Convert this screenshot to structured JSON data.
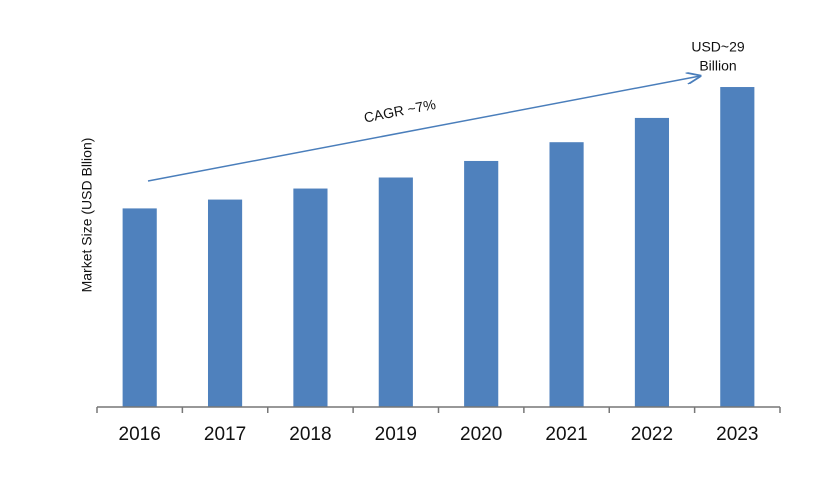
{
  "chart_data": {
    "type": "bar",
    "y_axis_label": "Market Size (USD Bllion)",
    "categories": [
      "2016",
      "2017",
      "2018",
      "2019",
      "2020",
      "2021",
      "2022",
      "2023"
    ],
    "values": [
      18,
      18.8,
      19.8,
      20.8,
      22.3,
      24,
      26.2,
      29
    ],
    "color": "#4f81bd",
    "ylim": [
      0,
      30
    ],
    "annotations": {
      "cagr": "CAGR ~7%",
      "last_value": [
        "USD~29",
        "Billion"
      ]
    }
  }
}
